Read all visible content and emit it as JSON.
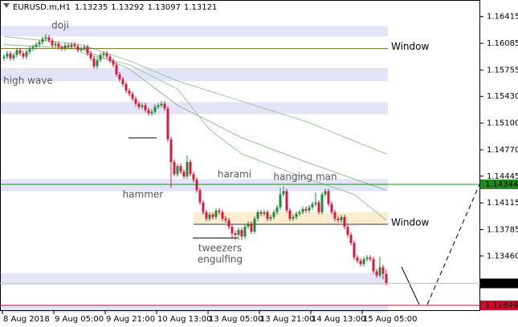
{
  "chart_data": {
    "type": "candlestick",
    "symbol": "EURUSD.m,H1",
    "open": [
      1.159,
      1.1592,
      1.1596,
      1.159,
      1.1594,
      1.16,
      1.1596,
      1.1592,
      1.1598,
      1.1602,
      1.1604,
      1.1607,
      1.161,
      1.1614,
      1.1616,
      1.1612,
      1.1606,
      1.1608,
      1.1604,
      1.1602,
      1.1606,
      1.1604,
      1.1607,
      1.1605,
      1.16,
      1.1602,
      1.1604,
      1.1596,
      1.159,
      1.158,
      1.1588,
      1.1594,
      1.1596,
      1.1592,
      1.1587,
      1.1582,
      1.157,
      1.1564,
      1.1558,
      1.155,
      1.1546,
      1.154,
      1.1534,
      1.153,
      1.1532,
      1.1526,
      1.1522,
      1.1524,
      1.153,
      1.1532,
      1.1534,
      1.1528,
      1.149,
      1.1462,
      1.1447,
      1.1457,
      1.145,
      1.1444,
      1.1462,
      1.1447,
      1.144,
      1.1427,
      1.1412,
      1.14,
      1.1392,
      1.1397,
      1.1394,
      1.1402,
      1.14,
      1.1392,
      1.139,
      1.1382,
      1.1374,
      1.1372,
      1.1378,
      1.137,
      1.1382,
      1.1386,
      1.1376,
      1.1392,
      1.14,
      1.1398,
      1.14,
      1.1392,
      1.1394,
      1.14,
      1.1406,
      1.1422,
      1.1426,
      1.1402,
      1.1392,
      1.1394,
      1.1398,
      1.14,
      1.1404,
      1.1402,
      1.1406,
      1.141,
      1.1412,
      1.14,
      1.1422,
      1.1426,
      1.141,
      1.14,
      1.1392,
      1.139,
      1.1394,
      1.1382,
      1.1372,
      1.1362,
      1.1344,
      1.134,
      1.1336,
      1.1342,
      1.1344,
      1.1342,
      1.1327,
      1.1322,
      1.1332,
      1.13235
    ],
    "high": [
      1.1595,
      1.1599,
      1.1599,
      1.1597,
      1.1603,
      1.1603,
      1.1599,
      1.1601,
      1.1605,
      1.1607,
      1.161,
      1.1613,
      1.1617,
      1.162,
      1.1619,
      1.1615,
      1.1611,
      1.1611,
      1.1607,
      1.1609,
      1.1609,
      1.161,
      1.161,
      1.1608,
      1.1605,
      1.1607,
      1.1607,
      1.1599,
      1.1593,
      1.1591,
      1.1597,
      1.1599,
      1.1599,
      1.1595,
      1.159,
      1.1585,
      1.1573,
      1.1567,
      1.1561,
      1.1553,
      1.1549,
      1.1543,
      1.1537,
      1.1535,
      1.1535,
      1.1529,
      1.1527,
      1.1533,
      1.1535,
      1.1537,
      1.1537,
      1.1531,
      1.1493,
      1.1465,
      1.146,
      1.146,
      1.1453,
      1.147,
      1.1465,
      1.145,
      1.1443,
      1.143,
      1.1415,
      1.1403,
      1.14,
      1.14,
      1.1405,
      1.1405,
      1.1403,
      1.1395,
      1.1393,
      1.1385,
      1.1377,
      1.1381,
      1.1381,
      1.1385,
      1.1389,
      1.1389,
      1.1395,
      1.1403,
      1.1403,
      1.1403,
      1.1403,
      1.1397,
      1.1403,
      1.1409,
      1.143,
      1.1432,
      1.1429,
      1.1405,
      1.1397,
      1.1401,
      1.1403,
      1.1407,
      1.1407,
      1.1409,
      1.1413,
      1.1424,
      1.1415,
      1.1425,
      1.1429,
      1.1429,
      1.1413,
      1.1403,
      1.1395,
      1.1397,
      1.1397,
      1.1385,
      1.1375,
      1.1365,
      1.1347,
      1.1343,
      1.1345,
      1.1347,
      1.1347,
      1.1345,
      1.133,
      1.1345,
      1.1335,
      1.13292
    ],
    "low": [
      1.1587,
      1.1589,
      1.1587,
      1.1587,
      1.1591,
      1.1593,
      1.1589,
      1.1589,
      1.1595,
      1.1599,
      1.1601,
      1.1604,
      1.1607,
      1.1611,
      1.1609,
      1.1603,
      1.1603,
      1.1601,
      1.1599,
      1.1599,
      1.1601,
      1.1601,
      1.1602,
      1.1597,
      1.1597,
      1.1599,
      1.1593,
      1.1587,
      1.1577,
      1.1577,
      1.1585,
      1.1591,
      1.1589,
      1.1584,
      1.1579,
      1.1567,
      1.1561,
      1.1555,
      1.1547,
      1.1543,
      1.1537,
      1.1531,
      1.1527,
      1.1527,
      1.1523,
      1.1519,
      1.1519,
      1.1521,
      1.1527,
      1.1529,
      1.1525,
      1.1487,
      1.143,
      1.1444,
      1.1444,
      1.1447,
      1.1441,
      1.1441,
      1.1444,
      1.1437,
      1.1424,
      1.1409,
      1.1397,
      1.1389,
      1.1389,
      1.1391,
      1.1391,
      1.1397,
      1.1389,
      1.1387,
      1.1379,
      1.1368,
      1.1366,
      1.1366,
      1.1366,
      1.1367,
      1.1379,
      1.1373,
      1.1373,
      1.1389,
      1.1395,
      1.1395,
      1.1389,
      1.1389,
      1.1391,
      1.1397,
      1.1403,
      1.1419,
      1.1399,
      1.1389,
      1.1389,
      1.1391,
      1.1395,
      1.1397,
      1.1399,
      1.1399,
      1.1403,
      1.1407,
      1.1397,
      1.1397,
      1.1419,
      1.1407,
      1.1397,
      1.1389,
      1.1387,
      1.1387,
      1.1379,
      1.1369,
      1.1359,
      1.1341,
      1.1337,
      1.1333,
      1.1333,
      1.1339,
      1.1339,
      1.1324,
      1.1319,
      1.1319,
      1.1317,
      1.13097
    ],
    "close": [
      1.1592,
      1.1596,
      1.159,
      1.1594,
      1.16,
      1.1596,
      1.1592,
      1.1598,
      1.1602,
      1.1604,
      1.1607,
      1.161,
      1.1614,
      1.1616,
      1.1612,
      1.1606,
      1.1608,
      1.1604,
      1.1602,
      1.1606,
      1.1604,
      1.1607,
      1.1605,
      1.16,
      1.1602,
      1.1604,
      1.1596,
      1.159,
      1.158,
      1.1588,
      1.1594,
      1.1596,
      1.1592,
      1.1587,
      1.1582,
      1.157,
      1.1564,
      1.1558,
      1.155,
      1.1546,
      1.154,
      1.1534,
      1.153,
      1.1532,
      1.1526,
      1.1522,
      1.1524,
      1.153,
      1.1532,
      1.1534,
      1.1528,
      1.149,
      1.1462,
      1.1447,
      1.1457,
      1.145,
      1.1444,
      1.1462,
      1.1447,
      1.144,
      1.1427,
      1.1412,
      1.14,
      1.1392,
      1.1397,
      1.1394,
      1.1402,
      1.14,
      1.1392,
      1.139,
      1.1382,
      1.1374,
      1.1372,
      1.1378,
      1.137,
      1.1382,
      1.1386,
      1.1376,
      1.1392,
      1.14,
      1.1398,
      1.14,
      1.1392,
      1.1394,
      1.14,
      1.1406,
      1.1422,
      1.1426,
      1.1402,
      1.1392,
      1.1394,
      1.1398,
      1.14,
      1.1404,
      1.1402,
      1.1406,
      1.141,
      1.1412,
      1.14,
      1.1422,
      1.1426,
      1.141,
      1.14,
      1.1392,
      1.139,
      1.1394,
      1.1382,
      1.1372,
      1.1362,
      1.1344,
      1.134,
      1.1336,
      1.1342,
      1.1344,
      1.1342,
      1.1327,
      1.1322,
      1.1332,
      1.1324,
      1.13121
    ],
    "up_color": "#1f8a3a",
    "down_color": "#d6193e",
    "xlim": [
      -1.25,
      148.25
    ],
    "ylim": [
      1.1278,
      1.1662
    ],
    "yticks": [
      1.16415,
      1.16085,
      1.15755,
      {
        "value": 1.1543,
        "label": "1.15430"
      },
      {
        "value": 1.151,
        "label": "1.15100"
      },
      {
        "value": 1.1477,
        "label": "1.14770"
      },
      1.14445,
      1.14115,
      1.13785,
      {
        "value": 1.1346,
        "label": "1.13460"
      }
    ],
    "xticks": [
      {
        "value": -0.5,
        "label": "8 Aug 2018"
      },
      {
        "value": 15.5,
        "label": "9 Aug 05:00"
      },
      {
        "value": 31.5,
        "label": "9 Aug 21:00"
      },
      {
        "value": 47.5,
        "label": "10 Aug 13:00"
      },
      {
        "value": 63.5,
        "label": "13 Aug 05:00"
      },
      {
        "value": 79.5,
        "label": "13 Aug 21:00"
      },
      {
        "value": 95.5,
        "label": "14 Aug 13:00"
      },
      {
        "value": 111.5,
        "label": "15 Aug 05:00"
      }
    ],
    "moving_averages": [
      {
        "color": "#9cc89c",
        "x": [
          0,
          24,
          39,
          54,
          74,
          94,
          119
        ],
        "values": [
          1.1617,
          1.1607,
          1.1587,
          1.1562,
          1.1537,
          1.1512,
          1.1472
        ]
      },
      {
        "color": "#8fbf8f",
        "x": [
          0,
          24,
          39,
          54,
          74,
          94,
          119
        ],
        "values": [
          1.1607,
          1.1602,
          1.1577,
          1.1532,
          1.1492,
          1.1462,
          1.1427
        ]
      },
      {
        "color": "#9cc89c",
        "x": [
          24,
          39,
          54,
          64,
          74,
          94,
          109,
          119
        ],
        "values": [
          1.1597,
          1.1582,
          1.1552,
          1.1502,
          1.1472,
          1.1442,
          1.1422,
          1.139
        ]
      }
    ],
    "zones": [
      [
        1.163,
        1.1617
      ],
      [
        1.1578,
        1.1562
      ],
      [
        1.1536,
        1.1521
      ],
      [
        1.1441,
        1.1426
      ],
      [
        1.1325,
        1.131
      ],
      [
        1.1285,
        1.1276
      ]
    ],
    "zone_color": "#e4e4f8",
    "window_zone": {
      "range": [
        1.14,
        1.1385
      ],
      "start": 59,
      "color": "#fcecd0"
    },
    "levels": [
      {
        "value": 1.1602,
        "label": "Window",
        "color": "#7d6b2b",
        "label_color": "#d39a3a"
      },
      {
        "value": 1.1385,
        "label": "Window",
        "color": "#333333",
        "label_color": "#d39a3a",
        "start": 59
      }
    ],
    "marked_levels": [
      {
        "value": 1.14344,
        "color": "#1a8a1a"
      },
      {
        "value": 1.12849,
        "color": "#c8102e"
      }
    ],
    "annotations": [
      "doji",
      "high wave",
      "hammer",
      "harami",
      "hanging man",
      "tweezers",
      "engulfing"
    ]
  }
}
